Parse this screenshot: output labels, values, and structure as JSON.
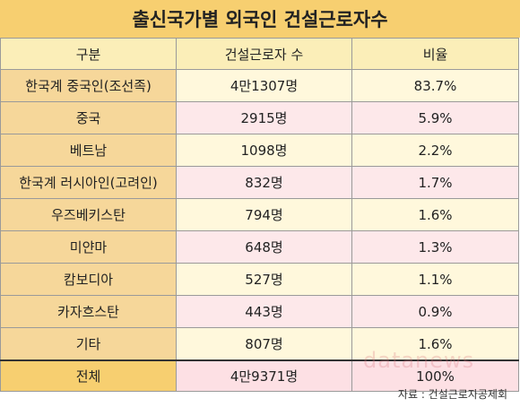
{
  "title": "출신국가별 외국인 건설근로자수",
  "headers": [
    "구분",
    "건설근로자 수",
    "비율"
  ],
  "rows": [
    {
      "category": "한국계 중국인(조선족)",
      "count": "4만1307명",
      "ratio": "83.7%"
    },
    {
      "category": "중국",
      "count": "2915명",
      "ratio": "5.9%"
    },
    {
      "category": "베트남",
      "count": "1098명",
      "ratio": "2.2%"
    },
    {
      "category": "한국계 러시아인(고려인)",
      "count": "832명",
      "ratio": "1.7%"
    },
    {
      "category": "우즈베키스탄",
      "count": "794명",
      "ratio": "1.6%"
    },
    {
      "category": "미얀마",
      "count": "648명",
      "ratio": "1.3%"
    },
    {
      "category": "캄보디아",
      "count": "527명",
      "ratio": "1.1%"
    },
    {
      "category": "카자흐스탄",
      "count": "443명",
      "ratio": "0.9%"
    },
    {
      "category": "기타",
      "count": "807명",
      "ratio": "1.6%"
    }
  ],
  "total": {
    "category": "전체",
    "count": "4만9371명",
    "ratio": "100%"
  },
  "source": "자료 : 건설근로자공제회",
  "watermark": "datanews",
  "colors": {
    "title_bg": "#f7cf70",
    "label_bg": "#f6d79a",
    "row_yellow": "#fff8dc",
    "row_pink": "#fde8ea"
  }
}
